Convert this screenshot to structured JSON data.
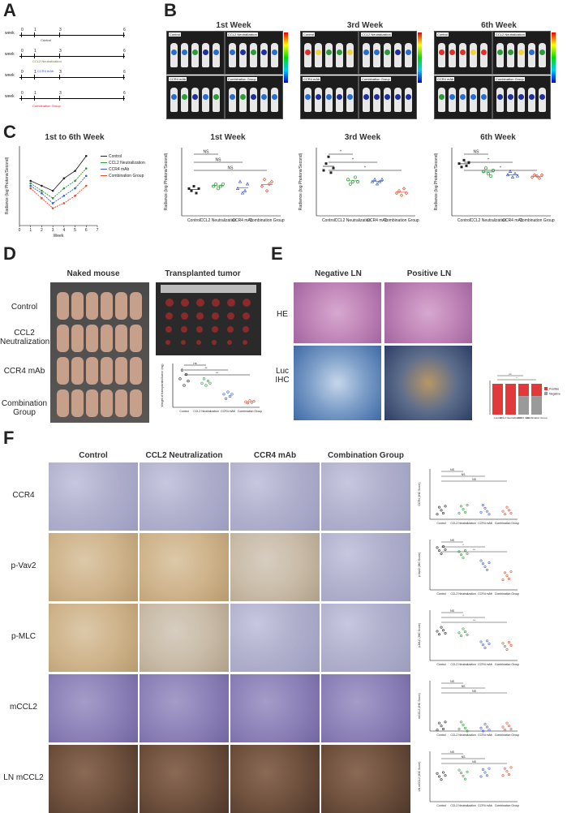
{
  "panels": {
    "a": "A",
    "b": "B",
    "c": "C",
    "d": "D",
    "e": "E",
    "f": "F"
  },
  "panel_a": {
    "week_label": "week",
    "tick_labels": [
      "0",
      "1",
      "3",
      "6"
    ],
    "groups": [
      "Control",
      "CCL2 Neutralization",
      "CCR4 mAb",
      "Combination Group"
    ],
    "group_colors": [
      "#333333",
      "#6a7a2a",
      "#3355cc",
      "#dd2222"
    ]
  },
  "panel_b": {
    "weeks": [
      "1st Week",
      "3rd Week",
      "6th Week"
    ],
    "image_labels": [
      "Control",
      "CCL2 Neutralization",
      "CCR4 mAb",
      "Combination Group"
    ]
  },
  "panel_c": {
    "line_chart": {
      "title": "1st to 6th Week",
      "xlabel": "Week",
      "ylabel": "Radiance (log Photons/Second)",
      "legend": [
        "Control",
        "CCL2 Neutralization",
        "CCR4 mAb",
        "Combination Group"
      ],
      "colors": [
        "#222222",
        "#2c9b3a",
        "#3a5ccc",
        "#e24b2b"
      ]
    },
    "scatter_charts": [
      {
        "title": "1st Week",
        "ylabel": "Radiance (log Photons/Second)",
        "categories": [
          "Control",
          "CCL2 Neutralization",
          "CCR4 mAb",
          "Combination Group"
        ],
        "sig": [
          "NS",
          "NS",
          "NS"
        ]
      },
      {
        "title": "3rd Week",
        "ylabel": "Radiance (log Photons/Second)",
        "categories": [
          "Control",
          "CCL2 Neutralization",
          "CCR4 mAb",
          "Combination Group"
        ],
        "sig": [
          "*",
          "*",
          "*"
        ]
      },
      {
        "title": "6th Week",
        "ylabel": "Radiance (log Photons/Second)",
        "categories": [
          "Control",
          "CCL2 Neutralization",
          "CCR4 mAb",
          "Combination Group"
        ],
        "sig": [
          "NS",
          "*",
          "*"
        ]
      }
    ]
  },
  "panel_d": {
    "col1": "Naked mouse",
    "col2": "Transplanted tumor",
    "rows": [
      "Control",
      "CCL2\nNeutralization",
      "CCR4 mAb",
      "Combination\nGroup"
    ],
    "chart_ylabel": "Weight of transplanted tumor (mg)",
    "chart_categories": [
      "Control",
      "CCL2 Neutralization",
      "CCR4 mAb",
      "Combination Group"
    ],
    "sig": [
      "ns",
      "**",
      "**"
    ]
  },
  "panel_e": {
    "col1": "Negative LN",
    "col2": "Positive LN",
    "rows": [
      "HE",
      "Luc\nIHC"
    ],
    "legend": [
      "Positive",
      "Negative"
    ],
    "bar_categories": [
      "Control",
      "CCL2 Neutralization",
      "CCR4 mAb",
      "Combination Group"
    ]
  },
  "panel_f": {
    "cols": [
      "Control",
      "CCL2 Neutralization",
      "CCR4 mAb",
      "Combination Group"
    ],
    "rows": [
      "CCR4",
      "p-Vav2",
      "p-MLC",
      "mCCL2",
      "LN mCCL2"
    ],
    "side_charts": [
      {
        "ylabel": "CCR4 (IHC Score)",
        "sig": [
          "NS",
          "NS",
          "NS"
        ]
      },
      {
        "ylabel": "p-Vav2 (IHC Score)",
        "sig": [
          "NS",
          "*",
          "**"
        ]
      },
      {
        "ylabel": "p-MLC (IHC Score)",
        "sig": [
          "NS",
          "*",
          "**"
        ]
      },
      {
        "ylabel": "mCCL2 (IHC Score)",
        "sig": [
          "NS",
          "NS",
          "NS"
        ]
      },
      {
        "ylabel": "LN mCCL2 (IHC Score)",
        "sig": [
          "NS",
          "NS",
          "NS"
        ]
      }
    ],
    "categories": [
      "Control",
      "CCL2 Neutralization",
      "CCR4 mAb",
      "Combination Group"
    ]
  }
}
